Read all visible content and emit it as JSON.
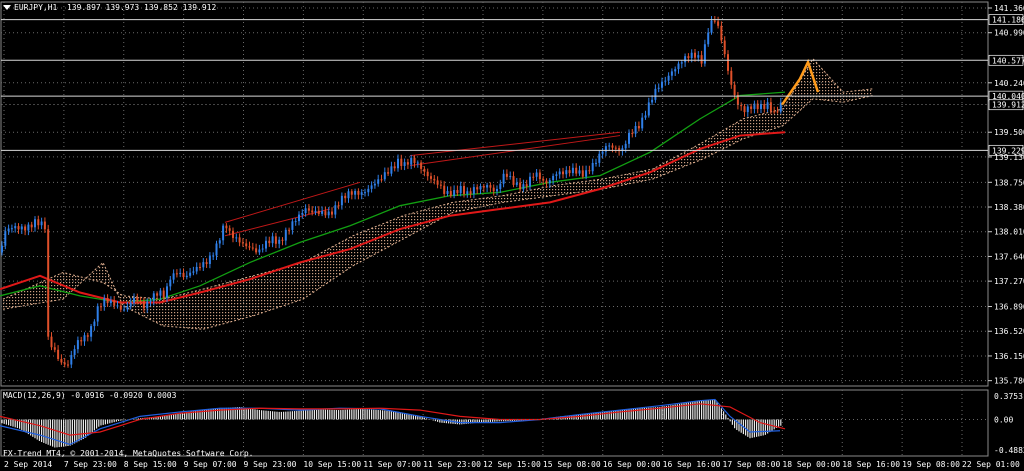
{
  "header": {
    "symbol_info": "EURJPY,H1  139.897 139.973 139.852 139.912",
    "macd_info": "MACD(12,26,9) -0.0916 -0.0920 0.0003",
    "copyright": "FX-Trend MT4, © 2001-2014, MetaQuotes Software Corp."
  },
  "colors": {
    "background": "#000000",
    "grid": "#6a6a6a",
    "bull": "#2f7fe8",
    "bear": "#e0502a",
    "ma_slow": "#e01818",
    "ma_fast": "#12a012",
    "cloud": "#e0b090",
    "forecast": "#ff9a1a",
    "channel": "#c01818",
    "macd_hist": "#e8e8e8",
    "macd_line": "#2060e0",
    "signal_line": "#e01818"
  },
  "chart_data": {
    "type": "line",
    "chart_kind": "candlestick price chart with indicators",
    "price_axis_ticks": [
      "141.360",
      "140.990",
      "140.240",
      "139.500",
      "139.130",
      "138.750",
      "138.380",
      "138.010",
      "137.640",
      "137.270",
      "136.890",
      "136.520",
      "136.150",
      "135.780"
    ],
    "price_lines": [
      {
        "label": "141.186",
        "value": 141.186,
        "style": "white-line"
      },
      {
        "label": "140.577",
        "value": 140.577,
        "style": "white-line"
      },
      {
        "label": "140.040",
        "value": 140.04,
        "style": "white-line"
      },
      {
        "label": "139.912",
        "value": 139.912,
        "style": "current-price"
      },
      {
        "label": "139.229",
        "value": 139.229,
        "style": "white-line"
      }
    ],
    "ylim": [
      135.7,
      141.45
    ],
    "time_labels": [
      "2 Sep 2014",
      "7 Sep 23:00",
      "8 Sep 15:00",
      "9 Sep 07:00",
      "9 Sep 23:00",
      "10 Sep 15:00",
      "11 Sep 07:00",
      "11 Sep 23:00",
      "12 Sep 15:00",
      "15 Sep 08:00",
      "16 Sep 00:00",
      "16 Sep 16:00",
      "17 Sep 08:00",
      "18 Sep 00:00",
      "18 Sep 16:00",
      "19 Sep 08:00",
      "22 Sep 01:00"
    ],
    "price_path": [
      [
        0,
        137.7
      ],
      [
        5,
        138.0
      ],
      [
        15,
        138.05
      ],
      [
        25,
        138.1
      ],
      [
        35,
        138.15
      ],
      [
        45,
        138.05
      ],
      [
        48,
        136.4
      ],
      [
        55,
        136.25
      ],
      [
        62,
        136.05
      ],
      [
        68,
        136.0
      ],
      [
        78,
        136.35
      ],
      [
        90,
        136.55
      ],
      [
        98,
        136.85
      ],
      [
        105,
        136.95
      ],
      [
        115,
        136.95
      ],
      [
        125,
        136.85
      ],
      [
        135,
        136.98
      ],
      [
        145,
        136.9
      ],
      [
        150,
        137.05
      ],
      [
        158,
        137.1
      ],
      [
        165,
        137.0
      ],
      [
        170,
        137.3
      ],
      [
        178,
        137.45
      ],
      [
        185,
        137.35
      ],
      [
        195,
        137.4
      ],
      [
        205,
        137.55
      ],
      [
        212,
        137.7
      ],
      [
        218,
        137.85
      ],
      [
        225,
        138.1
      ],
      [
        230,
        137.95
      ],
      [
        240,
        137.9
      ],
      [
        248,
        137.8
      ],
      [
        258,
        137.65
      ],
      [
        266,
        137.85
      ],
      [
        272,
        137.95
      ],
      [
        280,
        137.85
      ],
      [
        290,
        138.05
      ],
      [
        298,
        138.25
      ],
      [
        305,
        138.4
      ],
      [
        312,
        138.3
      ],
      [
        320,
        138.25
      ],
      [
        330,
        138.3
      ],
      [
        340,
        138.5
      ],
      [
        350,
        138.55
      ],
      [
        360,
        138.6
      ],
      [
        370,
        138.7
      ],
      [
        380,
        138.75
      ],
      [
        390,
        138.95
      ],
      [
        398,
        139.1
      ],
      [
        405,
        139.0
      ],
      [
        412,
        139.05
      ],
      [
        420,
        139.0
      ],
      [
        430,
        138.85
      ],
      [
        438,
        138.7
      ],
      [
        445,
        138.55
      ],
      [
        452,
        138.6
      ],
      [
        460,
        138.7
      ],
      [
        468,
        138.55
      ],
      [
        478,
        138.65
      ],
      [
        488,
        138.75
      ],
      [
        496,
        138.6
      ],
      [
        505,
        138.85
      ],
      [
        515,
        138.75
      ],
      [
        525,
        138.7
      ],
      [
        535,
        138.85
      ],
      [
        545,
        138.75
      ],
      [
        555,
        138.9
      ],
      [
        565,
        138.85
      ],
      [
        575,
        138.95
      ],
      [
        585,
        138.9
      ],
      [
        595,
        139.0
      ],
      [
        602,
        139.2
      ],
      [
        608,
        139.35
      ],
      [
        614,
        139.3
      ],
      [
        622,
        139.2
      ],
      [
        630,
        139.45
      ],
      [
        640,
        139.65
      ],
      [
        648,
        139.9
      ],
      [
        656,
        140.1
      ],
      [
        664,
        140.25
      ],
      [
        672,
        140.45
      ],
      [
        680,
        140.55
      ],
      [
        688,
        140.6
      ],
      [
        696,
        140.65
      ],
      [
        702,
        140.6
      ],
      [
        708,
        141.05
      ],
      [
        714,
        141.2
      ],
      [
        720,
        140.95
      ],
      [
        726,
        140.55
      ],
      [
        732,
        140.2
      ],
      [
        738,
        139.95
      ],
      [
        745,
        139.8
      ],
      [
        752,
        139.85
      ],
      [
        760,
        139.9
      ],
      [
        768,
        139.95
      ],
      [
        775,
        139.75
      ],
      [
        782,
        139.91
      ]
    ],
    "ma_slow": [
      [
        0,
        137.15
      ],
      [
        40,
        137.35
      ],
      [
        80,
        137.1
      ],
      [
        120,
        136.95
      ],
      [
        160,
        136.95
      ],
      [
        200,
        137.1
      ],
      [
        250,
        137.3
      ],
      [
        300,
        137.55
      ],
      [
        350,
        137.75
      ],
      [
        400,
        138.05
      ],
      [
        450,
        138.25
      ],
      [
        500,
        138.35
      ],
      [
        550,
        138.45
      ],
      [
        600,
        138.65
      ],
      [
        650,
        138.9
      ],
      [
        700,
        139.25
      ],
      [
        740,
        139.45
      ],
      [
        785,
        139.5
      ]
    ],
    "ma_fast": [
      [
        0,
        137.05
      ],
      [
        40,
        137.2
      ],
      [
        80,
        137.05
      ],
      [
        120,
        136.95
      ],
      [
        160,
        137.0
      ],
      [
        200,
        137.2
      ],
      [
        250,
        137.55
      ],
      [
        300,
        137.85
      ],
      [
        350,
        138.1
      ],
      [
        400,
        138.4
      ],
      [
        450,
        138.55
      ],
      [
        500,
        138.6
      ],
      [
        550,
        138.75
      ],
      [
        600,
        138.85
      ],
      [
        650,
        139.2
      ],
      [
        700,
        139.7
      ],
      [
        740,
        140.05
      ],
      [
        785,
        140.1
      ]
    ],
    "forecast": [
      [
        782,
        139.91
      ],
      [
        800,
        140.3
      ],
      [
        808,
        140.55
      ],
      [
        818,
        140.1
      ]
    ],
    "channel_lines": [
      [
        [
          225,
          138.15
        ],
        [
          360,
          138.75
        ]
      ],
      [
        [
          225,
          137.95
        ],
        [
          330,
          138.35
        ]
      ],
      [
        [
          410,
          139.15
        ],
        [
          620,
          139.5
        ]
      ],
      [
        [
          410,
          139.0
        ],
        [
          620,
          139.45
        ]
      ]
    ],
    "cloud_upper": [
      [
        0,
        137.0
      ],
      [
        60,
        137.4
      ],
      [
        100,
        137.25
      ],
      [
        120,
        137.05
      ],
      [
        160,
        137.0
      ],
      [
        200,
        137.15
      ],
      [
        250,
        137.35
      ],
      [
        300,
        137.55
      ],
      [
        350,
        137.95
      ],
      [
        400,
        138.25
      ],
      [
        450,
        138.45
      ],
      [
        500,
        138.55
      ],
      [
        550,
        138.7
      ],
      [
        600,
        138.8
      ],
      [
        650,
        138.95
      ],
      [
        700,
        139.35
      ],
      [
        740,
        139.7
      ],
      [
        780,
        139.85
      ],
      [
        810,
        140.6
      ],
      [
        840,
        140.1
      ],
      [
        870,
        140.15
      ]
    ],
    "cloud_lower": [
      [
        0,
        136.85
      ],
      [
        60,
        137.0
      ],
      [
        100,
        137.55
      ],
      [
        120,
        136.9
      ],
      [
        160,
        136.6
      ],
      [
        200,
        136.55
      ],
      [
        250,
        136.75
      ],
      [
        300,
        137.0
      ],
      [
        350,
        137.5
      ],
      [
        400,
        137.9
      ],
      [
        450,
        138.3
      ],
      [
        500,
        138.45
      ],
      [
        550,
        138.55
      ],
      [
        600,
        138.65
      ],
      [
        650,
        138.8
      ],
      [
        700,
        139.1
      ],
      [
        740,
        139.4
      ],
      [
        780,
        139.6
      ],
      [
        810,
        140.0
      ],
      [
        840,
        139.95
      ],
      [
        870,
        140.05
      ]
    ],
    "macd": {
      "ticks": [
        "0.3753",
        "0.00",
        "-0.4882"
      ],
      "ylim": [
        -0.4882,
        0.3753
      ],
      "hist_points": [
        [
          0,
          -0.05
        ],
        [
          20,
          -0.15
        ],
        [
          40,
          -0.35
        ],
        [
          55,
          -0.45
        ],
        [
          70,
          -0.42
        ],
        [
          85,
          -0.3
        ],
        [
          100,
          -0.1
        ],
        [
          120,
          -0.02
        ],
        [
          140,
          0.02
        ],
        [
          160,
          0.05
        ],
        [
          180,
          0.1
        ],
        [
          200,
          0.15
        ],
        [
          220,
          0.18
        ],
        [
          240,
          0.2
        ],
        [
          260,
          0.15
        ],
        [
          280,
          0.12
        ],
        [
          300,
          0.14
        ],
        [
          320,
          0.16
        ],
        [
          340,
          0.15
        ],
        [
          360,
          0.17
        ],
        [
          380,
          0.15
        ],
        [
          400,
          0.12
        ],
        [
          420,
          0.05
        ],
        [
          440,
          -0.05
        ],
        [
          460,
          -0.08
        ],
        [
          480,
          -0.05
        ],
        [
          500,
          -0.03
        ],
        [
          520,
          -0.02
        ],
        [
          540,
          0.0
        ],
        [
          560,
          0.05
        ],
        [
          580,
          0.08
        ],
        [
          600,
          0.12
        ],
        [
          620,
          0.15
        ],
        [
          640,
          0.18
        ],
        [
          660,
          0.2
        ],
        [
          680,
          0.25
        ],
        [
          700,
          0.3
        ],
        [
          715,
          0.32
        ],
        [
          725,
          0.1
        ],
        [
          735,
          -0.15
        ],
        [
          750,
          -0.3
        ],
        [
          765,
          -0.25
        ],
        [
          780,
          -0.1
        ]
      ],
      "line": [
        [
          0,
          -0.1
        ],
        [
          40,
          -0.25
        ],
        [
          70,
          -0.4
        ],
        [
          100,
          -0.15
        ],
        [
          140,
          0.05
        ],
        [
          180,
          0.12
        ],
        [
          220,
          0.18
        ],
        [
          260,
          0.18
        ],
        [
          300,
          0.15
        ],
        [
          340,
          0.18
        ],
        [
          380,
          0.17
        ],
        [
          420,
          0.05
        ],
        [
          460,
          -0.05
        ],
        [
          500,
          -0.05
        ],
        [
          540,
          0.0
        ],
        [
          580,
          0.08
        ],
        [
          620,
          0.15
        ],
        [
          660,
          0.22
        ],
        [
          700,
          0.3
        ],
        [
          715,
          0.32
        ],
        [
          730,
          0.05
        ],
        [
          750,
          -0.2
        ],
        [
          780,
          -0.18
        ]
      ],
      "signal": [
        [
          0,
          0.05
        ],
        [
          40,
          -0.1
        ],
        [
          70,
          -0.25
        ],
        [
          100,
          -0.2
        ],
        [
          140,
          0.0
        ],
        [
          180,
          0.1
        ],
        [
          220,
          0.15
        ],
        [
          260,
          0.18
        ],
        [
          300,
          0.17
        ],
        [
          340,
          0.17
        ],
        [
          380,
          0.18
        ],
        [
          420,
          0.15
        ],
        [
          460,
          0.05
        ],
        [
          500,
          0.0
        ],
        [
          540,
          0.0
        ],
        [
          580,
          0.05
        ],
        [
          620,
          0.12
        ],
        [
          660,
          0.18
        ],
        [
          700,
          0.25
        ],
        [
          730,
          0.2
        ],
        [
          760,
          -0.05
        ],
        [
          785,
          -0.15
        ]
      ]
    }
  }
}
